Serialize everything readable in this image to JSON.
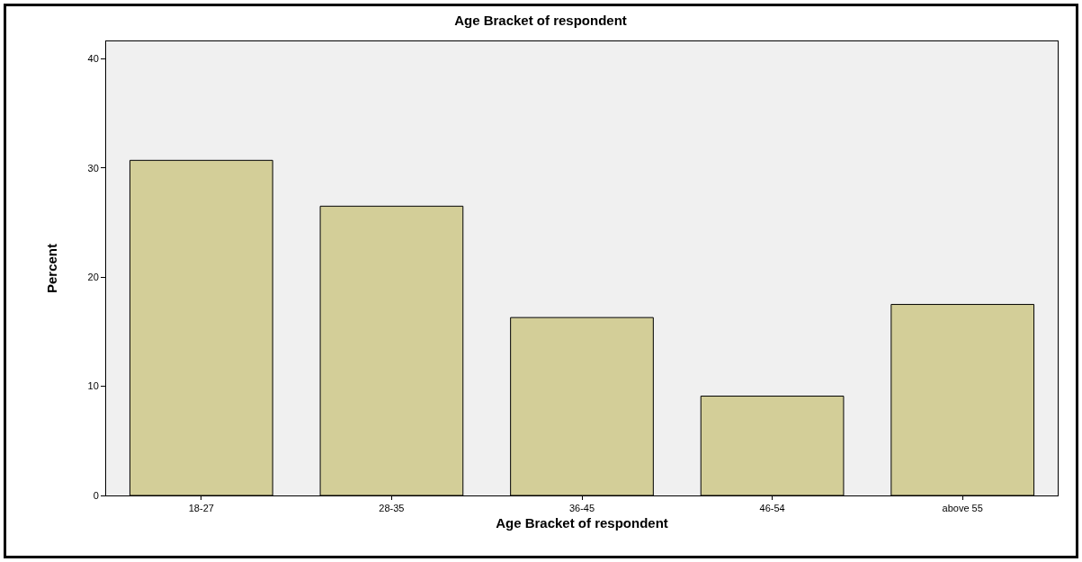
{
  "chart_data": {
    "type": "bar",
    "title": "Age Bracket of respondent",
    "xlabel": "Age Bracket of respondent",
    "ylabel": "Percent",
    "categories": [
      "18-27",
      "28-35",
      "36-45",
      "46-54",
      "above 55"
    ],
    "values": [
      30.7,
      26.5,
      16.3,
      9.1,
      17.5
    ],
    "color": "#d3ce98",
    "ylim": [
      0,
      41.6
    ],
    "yticks": [
      0,
      10,
      20,
      30,
      40
    ]
  }
}
